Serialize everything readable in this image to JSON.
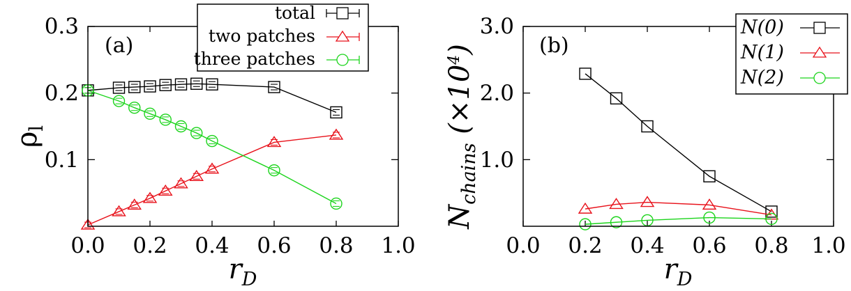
{
  "chart_data": [
    {
      "type": "line",
      "panel_label": "(a)",
      "ylabel": "ρ",
      "ylabel_sub": "l",
      "xlabel": "r",
      "xlabel_sub": "D",
      "xlim": [
        0.0,
        1.0
      ],
      "ylim": [
        0.0,
        0.3
      ],
      "xticks": [
        "0.0",
        "0.2",
        "0.4",
        "0.6",
        "0.8",
        "1.0"
      ],
      "yticks": [
        "0.1",
        "0.2",
        "0.3"
      ],
      "legend_position": "top-right",
      "series": [
        {
          "name": "total",
          "marker": "square",
          "color": "#000000",
          "errorbars": true,
          "x": [
            0.0,
            0.1,
            0.15,
            0.2,
            0.25,
            0.3,
            0.35,
            0.4,
            0.6,
            0.8
          ],
          "y": [
            0.204,
            0.208,
            0.209,
            0.21,
            0.212,
            0.213,
            0.214,
            0.213,
            0.209,
            0.171
          ]
        },
        {
          "name": "two patches",
          "marker": "triangle",
          "color": "#e8121b",
          "errorbars": true,
          "x": [
            0.0,
            0.1,
            0.15,
            0.2,
            0.25,
            0.3,
            0.35,
            0.4,
            0.6,
            0.8
          ],
          "y": [
            0.002,
            0.022,
            0.032,
            0.042,
            0.053,
            0.064,
            0.075,
            0.086,
            0.126,
            0.137
          ]
        },
        {
          "name": "three patches",
          "marker": "circle",
          "color": "#1bd41b",
          "errorbars": true,
          "x": [
            0.0,
            0.1,
            0.15,
            0.2,
            0.25,
            0.3,
            0.35,
            0.4,
            0.6,
            0.8
          ],
          "y": [
            0.204,
            0.188,
            0.178,
            0.169,
            0.16,
            0.15,
            0.14,
            0.128,
            0.084,
            0.034
          ]
        }
      ]
    },
    {
      "type": "line",
      "panel_label": "(b)",
      "ylabel": "N",
      "ylabel_sub": "chains",
      "ylabel_unit_open": " (×10",
      "ylabel_unit_sup": "4",
      "ylabel_unit_close": ")",
      "xlabel": "r",
      "xlabel_sub": "D",
      "xlim": [
        0.0,
        1.0
      ],
      "ylim": [
        0.0,
        3.0
      ],
      "xticks": [
        "0.0",
        "0.2",
        "0.4",
        "0.6",
        "0.8",
        "1.0"
      ],
      "yticks": [
        "1.0",
        "2.0",
        "3.0"
      ],
      "legend_position": "top-right",
      "series": [
        {
          "name": "N(0)",
          "marker": "square",
          "color": "#000000",
          "x": [
            0.2,
            0.3,
            0.4,
            0.6,
            0.8
          ],
          "y": [
            2.29,
            1.92,
            1.5,
            0.75,
            0.22
          ]
        },
        {
          "name": "N(1)",
          "marker": "triangle",
          "color": "#e8121b",
          "x": [
            0.2,
            0.3,
            0.4,
            0.6,
            0.8
          ],
          "y": [
            0.26,
            0.33,
            0.36,
            0.32,
            0.17
          ]
        },
        {
          "name": "N(2)",
          "marker": "circle",
          "color": "#1bd41b",
          "x": [
            0.2,
            0.3,
            0.4,
            0.6,
            0.8
          ],
          "y": [
            0.03,
            0.06,
            0.09,
            0.13,
            0.11
          ]
        }
      ]
    }
  ]
}
